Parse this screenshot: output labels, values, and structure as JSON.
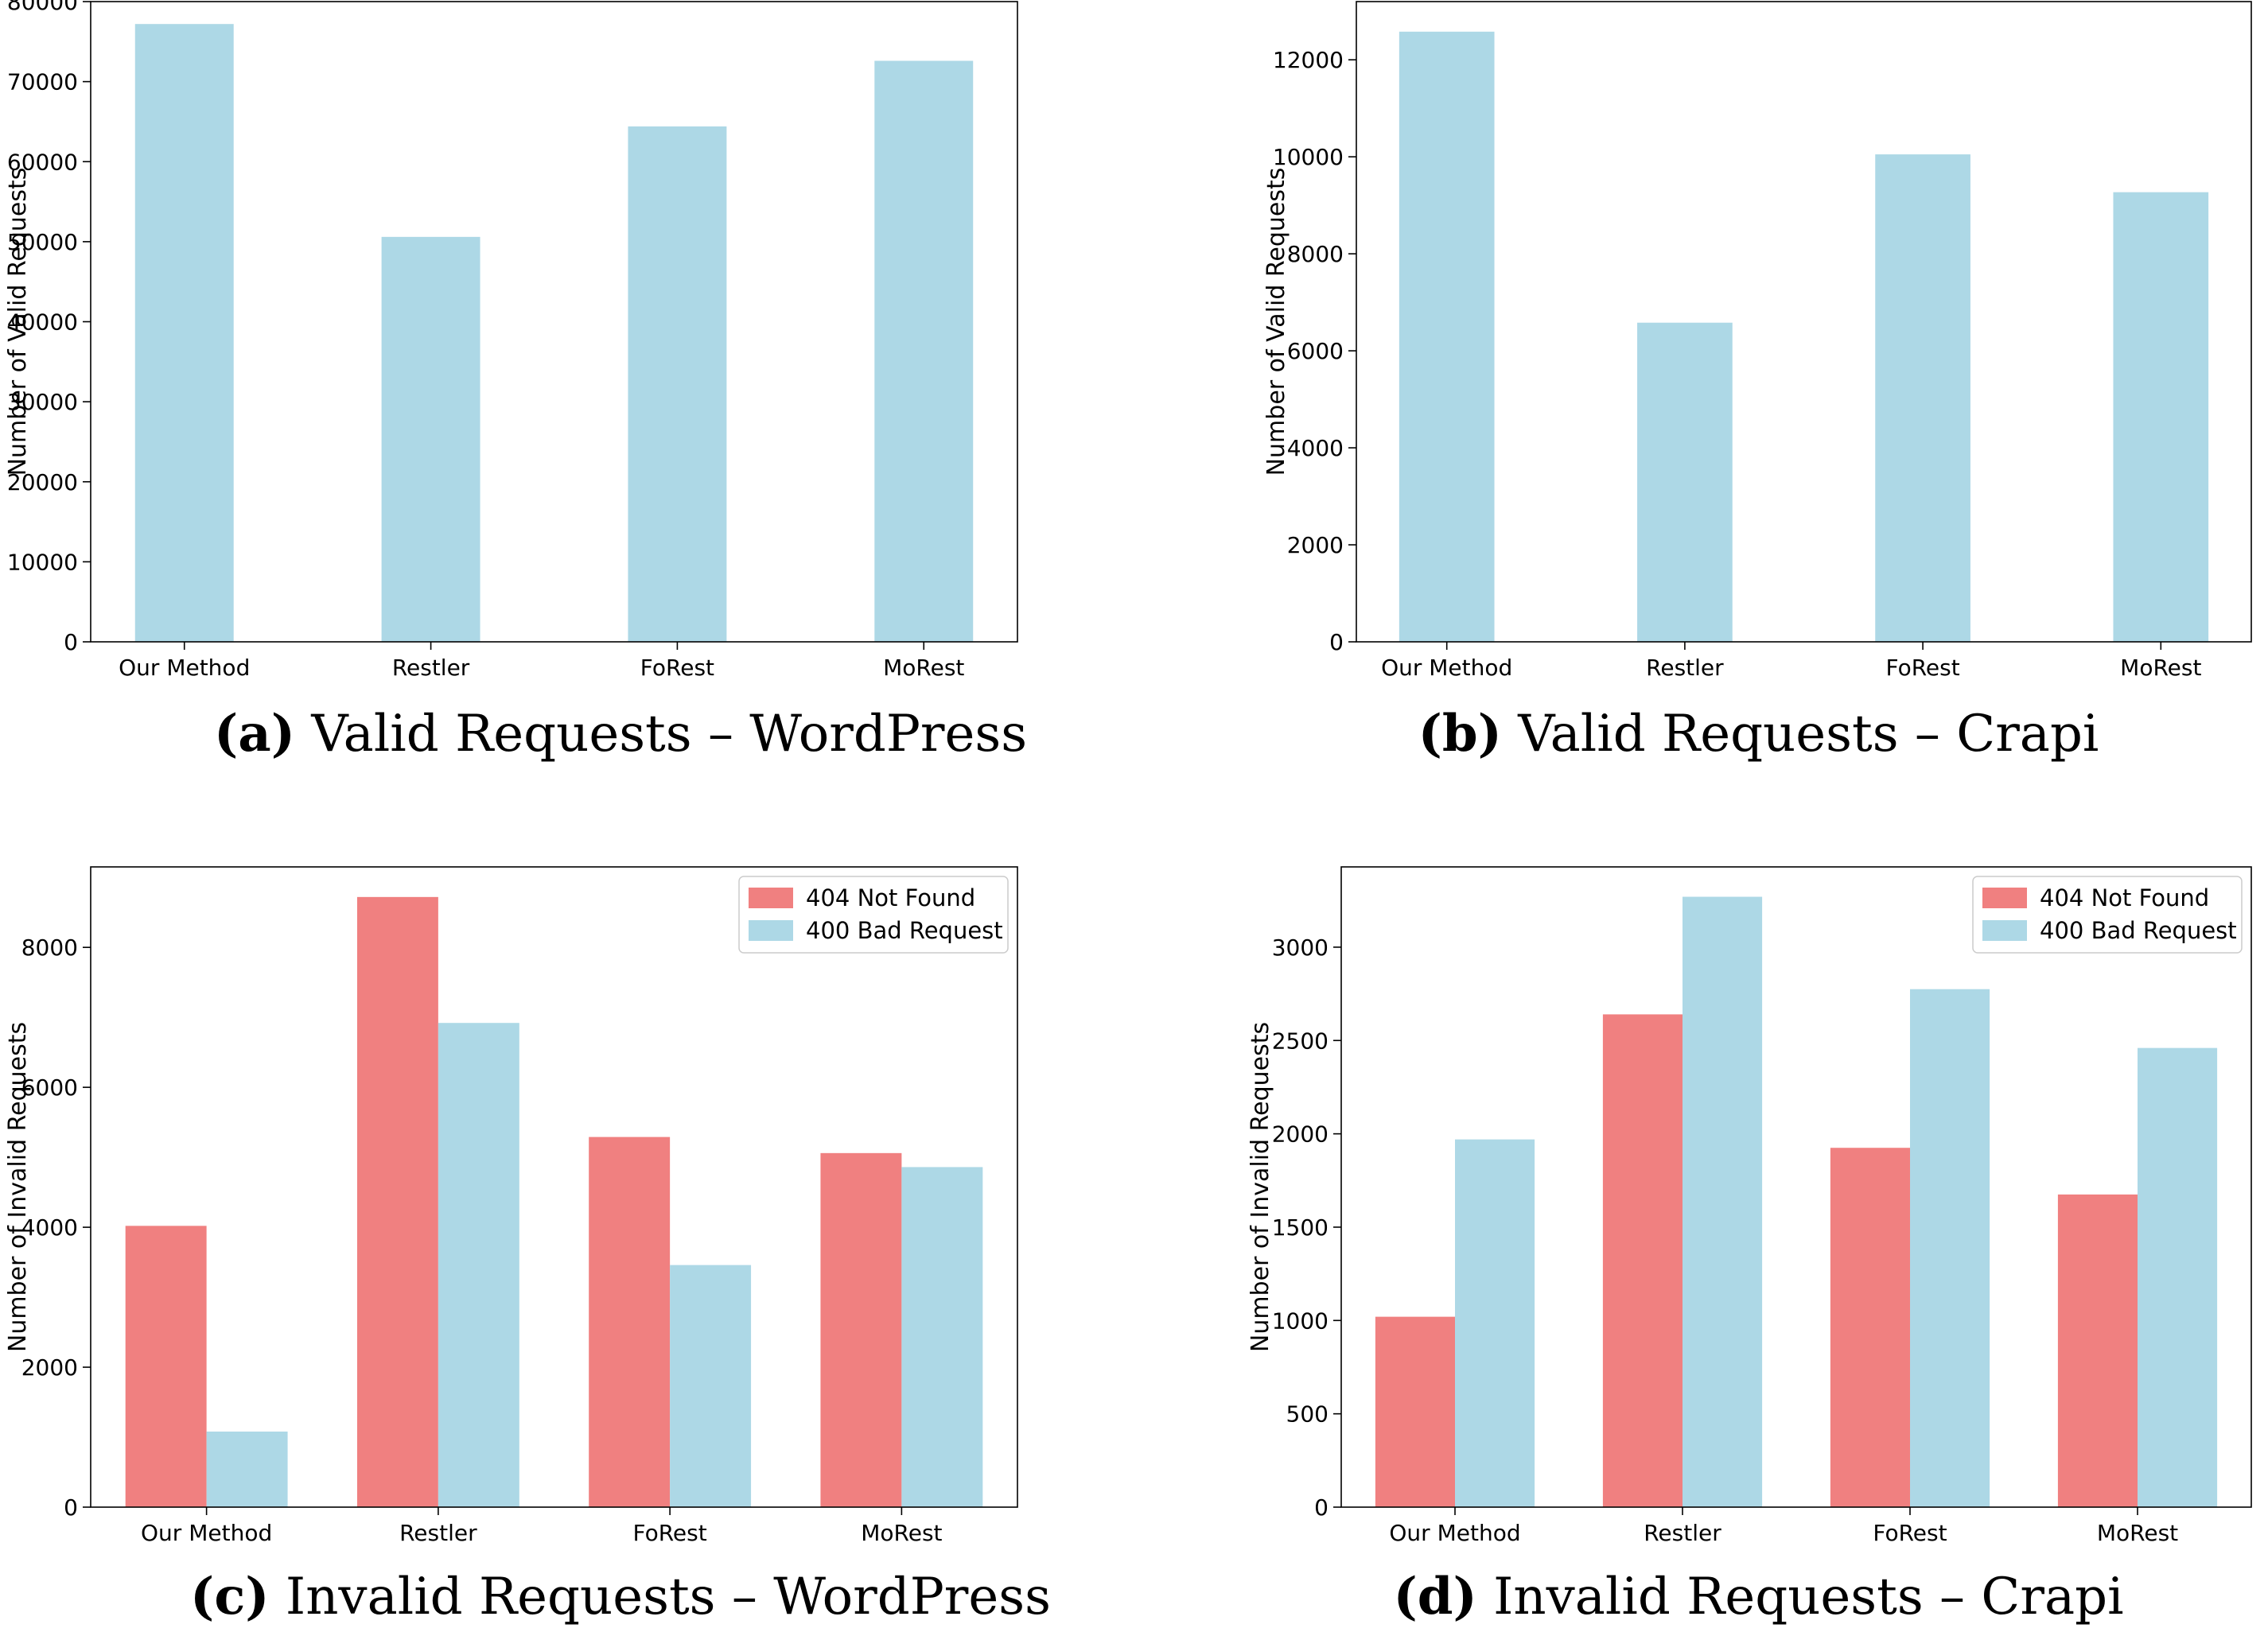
{
  "colors": {
    "valid": "#add8e6",
    "not_found": "#f08080",
    "bad_request": "#add8e6",
    "axis": "#000000"
  },
  "chart_data": [
    {
      "id": "a",
      "type": "bar",
      "caption_tag": "(a)",
      "caption": "Valid Requests – WordPress",
      "title": "",
      "xlabel": "",
      "ylabel": "Number of Valid Requests",
      "categories": [
        "Our Method",
        "Restler",
        "FoRest",
        "MoRest"
      ],
      "series": [
        {
          "name": "Valid Requests",
          "color": "#add8e6",
          "values": [
            77200,
            50600,
            64400,
            72600
          ]
        }
      ],
      "ylim": [
        0,
        80000
      ],
      "yticks": [
        0,
        10000,
        20000,
        30000,
        40000,
        50000,
        60000,
        70000,
        80000
      ],
      "grid": false
    },
    {
      "id": "b",
      "type": "bar",
      "caption_tag": "(b)",
      "caption": "Valid Requests – Crapi",
      "title": "",
      "xlabel": "",
      "ylabel": "Number of Valid Requests",
      "categories": [
        "Our Method",
        "Restler",
        "FoRest",
        "MoRest"
      ],
      "series": [
        {
          "name": "Valid Requests",
          "color": "#add8e6",
          "values": [
            12580,
            6580,
            10050,
            9270
          ]
        }
      ],
      "ylim": [
        0,
        13200
      ],
      "yticks": [
        0,
        2000,
        4000,
        6000,
        8000,
        10000,
        12000
      ],
      "grid": false
    },
    {
      "id": "c",
      "type": "bar",
      "caption_tag": "(c)",
      "caption": "Invalid Requests – WordPress",
      "title": "",
      "xlabel": "",
      "ylabel": "Number of Invalid Requests",
      "categories": [
        "Our Method",
        "Restler",
        "FoRest",
        "MoRest"
      ],
      "series": [
        {
          "name": "404 Not Found",
          "color": "#f08080",
          "values": [
            4020,
            8720,
            5290,
            5060
          ]
        },
        {
          "name": "400 Bad Request",
          "color": "#add8e6",
          "values": [
            1080,
            6920,
            3460,
            4860
          ]
        }
      ],
      "ylim": [
        0,
        9150
      ],
      "yticks": [
        0,
        2000,
        4000,
        6000,
        8000
      ],
      "legend": "top-right",
      "grid": false
    },
    {
      "id": "d",
      "type": "bar",
      "caption_tag": "(d)",
      "caption": "Invalid Requests – Crapi",
      "title": "",
      "xlabel": "",
      "ylabel": "Number of Invalid Requests",
      "categories": [
        "Our Method",
        "Restler",
        "FoRest",
        "MoRest"
      ],
      "series": [
        {
          "name": "404 Not Found",
          "color": "#f08080",
          "values": [
            1020,
            2640,
            1925,
            1675
          ]
        },
        {
          "name": "400 Bad Request",
          "color": "#add8e6",
          "values": [
            1970,
            3270,
            2775,
            2460
          ]
        }
      ],
      "ylim": [
        0,
        3430
      ],
      "yticks": [
        0,
        500,
        1000,
        1500,
        2000,
        2500,
        3000
      ],
      "legend": "top-right",
      "grid": false
    }
  ]
}
